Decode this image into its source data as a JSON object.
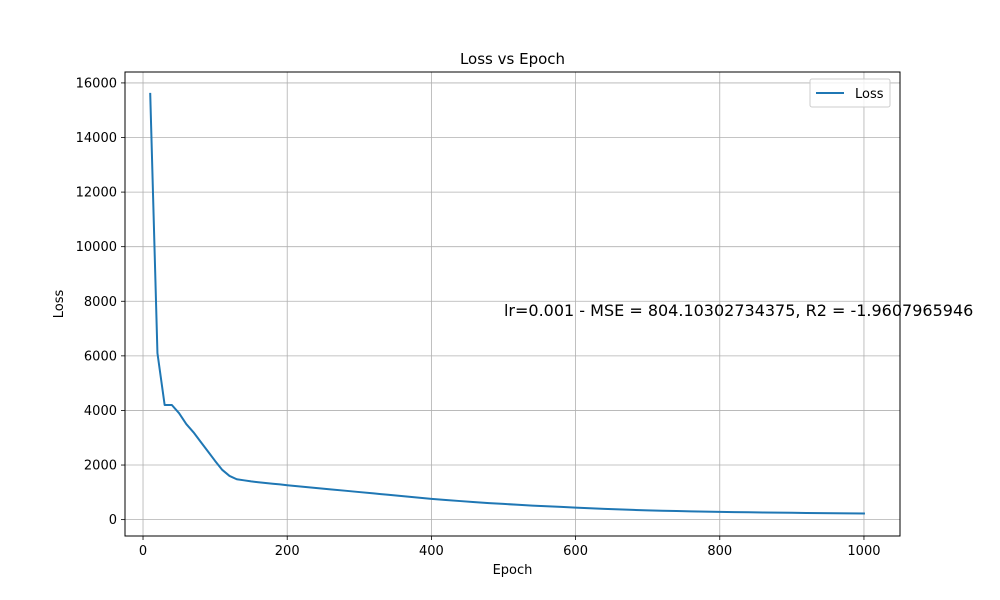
{
  "chart_data": {
    "type": "line",
    "title": "Loss vs Epoch",
    "xlabel": "Epoch",
    "ylabel": "Loss",
    "xlim": [
      -25,
      1050
    ],
    "ylim": [
      -600,
      16400
    ],
    "xticks": [
      0,
      200,
      400,
      600,
      800,
      1000
    ],
    "yticks": [
      0,
      2000,
      4000,
      6000,
      8000,
      10000,
      12000,
      14000,
      16000
    ],
    "grid": true,
    "legend": {
      "placement": "top-right"
    },
    "annotation": {
      "text": "lr=0.001 - MSE = 804.10302734375, R2 = -1.9607965946",
      "x": 500,
      "y": 7500
    },
    "series": [
      {
        "name": "Loss",
        "color": "#1f77b4",
        "x": [
          10,
          20,
          30,
          40,
          50,
          60,
          70,
          80,
          90,
          100,
          110,
          120,
          130,
          140,
          150,
          160,
          170,
          180,
          190,
          200,
          220,
          240,
          260,
          280,
          300,
          320,
          340,
          360,
          380,
          400,
          420,
          440,
          460,
          480,
          500,
          520,
          540,
          560,
          580,
          600,
          620,
          640,
          660,
          680,
          700,
          720,
          740,
          760,
          780,
          800,
          820,
          840,
          860,
          880,
          900,
          920,
          940,
          960,
          980,
          1000
        ],
        "y": [
          15600,
          6100,
          4200,
          4200,
          3900,
          3500,
          3200,
          2850,
          2500,
          2150,
          1820,
          1600,
          1480,
          1440,
          1400,
          1370,
          1340,
          1315,
          1290,
          1260,
          1210,
          1160,
          1110,
          1060,
          1010,
          960,
          910,
          860,
          810,
          760,
          720,
          680,
          640,
          605,
          575,
          545,
          515,
          490,
          465,
          440,
          415,
          395,
          375,
          355,
          340,
          325,
          315,
          303,
          292,
          282,
          275,
          268,
          262,
          256,
          250,
          245,
          240,
          235,
          230,
          225
        ]
      }
    ]
  }
}
